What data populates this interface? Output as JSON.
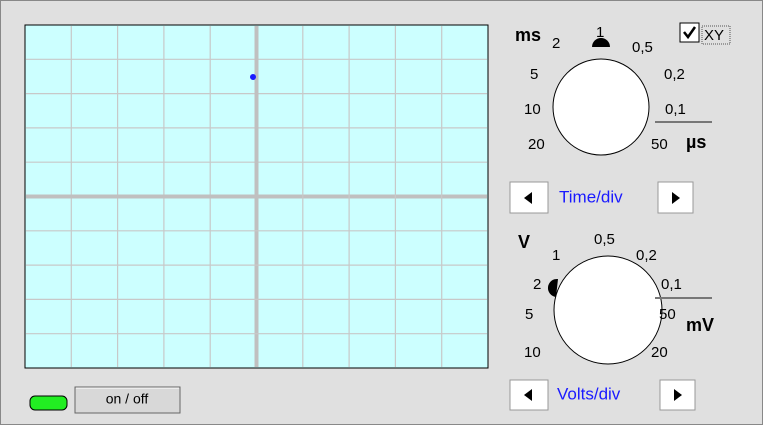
{
  "time_knob": {
    "unit": "ms",
    "unit_sub": "2",
    "labels": [
      "1",
      "0,5",
      "5",
      "0,2",
      "10",
      "0,1",
      "20",
      "50"
    ],
    "unit_small": "µs"
  },
  "xy_label": "XY",
  "time_button": "Time/div",
  "volts_knob": {
    "unit": "V",
    "labels": [
      "1",
      "0,5",
      "0,2",
      "2",
      "0,1",
      "5",
      "50",
      "10",
      "20"
    ],
    "unit_small": "mV"
  },
  "volts_button": "Volts/div",
  "power_button": "on / off"
}
